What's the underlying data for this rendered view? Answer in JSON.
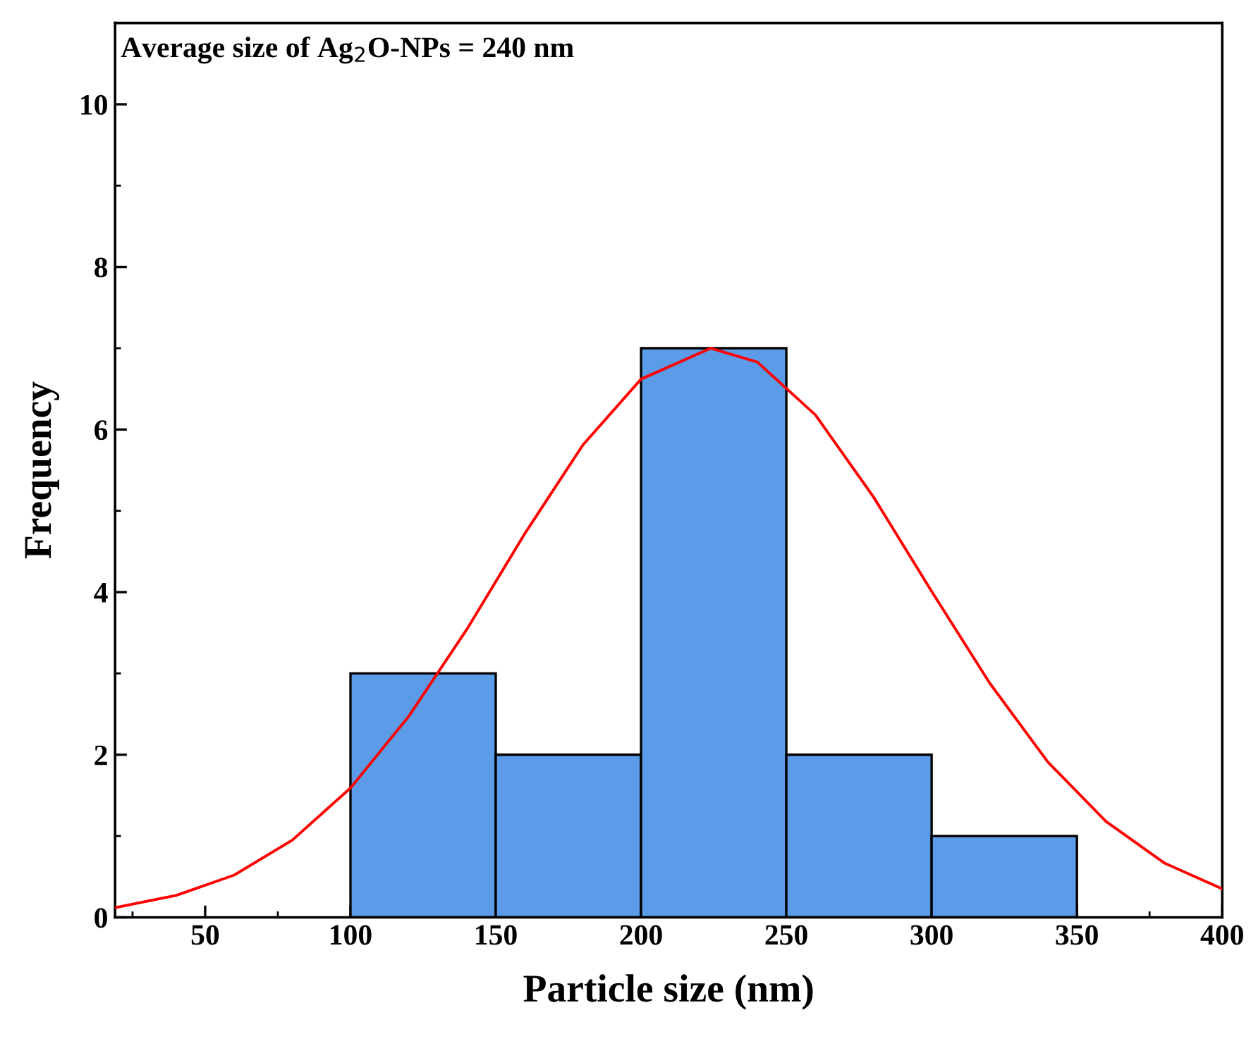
{
  "chart_data": {
    "type": "histogram",
    "xlabel": "Particle size (nm)",
    "ylabel": "Frequency",
    "annotations": [
      "Average size of Ag$_{2}$O-NPs = 240 nm"
    ],
    "bins": [
      100,
      150,
      200,
      250,
      300,
      350
    ],
    "values": [
      3,
      2,
      7,
      2,
      1
    ],
    "color": "#5b9be8",
    "series": [
      {
        "type": "line",
        "color": "#ff0000",
        "x": [
          19,
          40,
          60,
          80,
          100,
          120,
          140,
          160,
          180,
          200,
          224,
          240,
          260,
          280,
          300,
          320,
          340,
          360,
          380,
          400
        ],
        "values": [
          0.12,
          0.27,
          0.52,
          0.95,
          1.59,
          2.47,
          3.54,
          4.72,
          5.81,
          6.62,
          7,
          6.83,
          6.18,
          5.17,
          4.01,
          2.88,
          1.91,
          1.18,
          0.67,
          0.35
        ]
      }
    ],
    "xlim": [
      19,
      400
    ],
    "xticks": [
      50,
      100,
      150,
      200,
      250,
      300,
      350,
      400
    ],
    "ylim": [
      0,
      11
    ],
    "yticks": [
      0,
      2,
      4,
      6,
      8,
      10
    ],
    "grid": false,
    "legend": false,
    "marker": "none",
    "line_style": "solid"
  }
}
